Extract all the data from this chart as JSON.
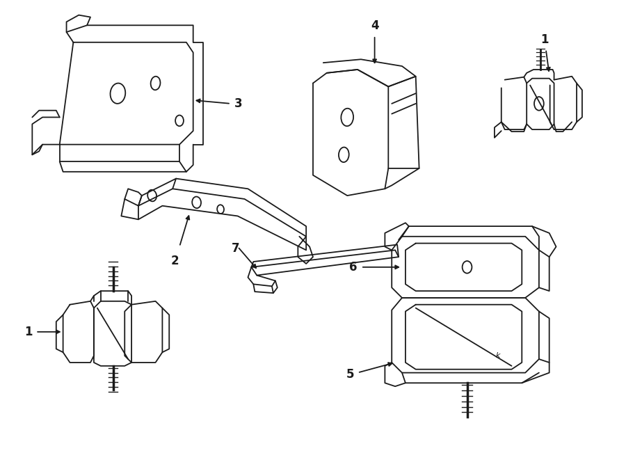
{
  "background_color": "#ffffff",
  "line_color": "#1a1a1a",
  "fig_width": 9.0,
  "fig_height": 6.61,
  "dpi": 100,
  "lw": 1.3
}
